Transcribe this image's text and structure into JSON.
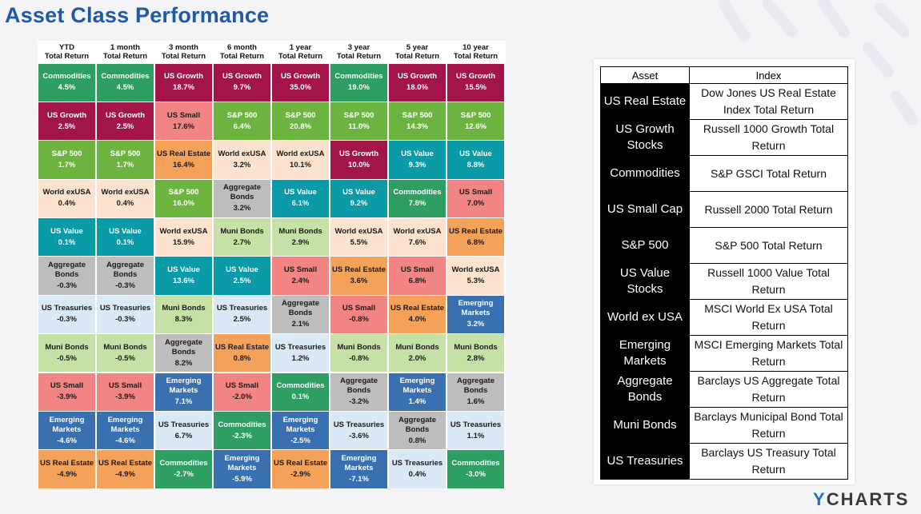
{
  "title": "Asset Class Performance",
  "brand": "YCHARTS",
  "colors": {
    "Commodities": {
      "bg": "#2e9e62",
      "fg": "#ffffff"
    },
    "US Growth": {
      "bg": "#a3154a",
      "fg": "#ffffff"
    },
    "S&P 500": {
      "bg": "#6cb33f",
      "fg": "#ffffff"
    },
    "World exUSA": {
      "bg": "#fde2d0",
      "fg": "#1a1a1a"
    },
    "US Value": {
      "bg": "#0a9aa8",
      "fg": "#ffffff"
    },
    "Aggregate Bonds": {
      "bg": "#bdbdbd",
      "fg": "#1a1a1a"
    },
    "US Treasuries": {
      "bg": "#dbe8f5",
      "fg": "#1a1a1a"
    },
    "Muni Bonds": {
      "bg": "#c6e1a6",
      "fg": "#1a1a1a"
    },
    "US Small": {
      "bg": "#f28583",
      "fg": "#1a1a1a"
    },
    "Emerging Markets": {
      "bg": "#3a6fb0",
      "fg": "#ffffff"
    },
    "US Real Estate": {
      "bg": "#f4a259",
      "fg": "#1a1a1a"
    }
  },
  "chart_data": {
    "type": "table",
    "title": "Asset Class Performance",
    "columns": [
      [
        "YTD",
        "Total Return"
      ],
      [
        "1 month",
        "Total Return"
      ],
      [
        "3 month",
        "Total Return"
      ],
      [
        "6 month",
        "Total Return"
      ],
      [
        "1 year",
        "Total Return"
      ],
      [
        "3 year",
        "Total Return"
      ],
      [
        "5 year",
        "Total Return"
      ],
      [
        "10 year",
        "Total Return"
      ]
    ],
    "rows": [
      [
        [
          "Commodities",
          "4.5%"
        ],
        [
          "Commodities",
          "4.5%"
        ],
        [
          "US Growth",
          "18.7%"
        ],
        [
          "US Growth",
          "9.7%"
        ],
        [
          "US Growth",
          "35.0%"
        ],
        [
          "Commodities",
          "19.0%"
        ],
        [
          "US Growth",
          "18.0%"
        ],
        [
          "US Growth",
          "15.5%"
        ]
      ],
      [
        [
          "US Growth",
          "2.5%"
        ],
        [
          "US Growth",
          "2.5%"
        ],
        [
          "US Small",
          "17.6%"
        ],
        [
          "S&P 500",
          "6.4%"
        ],
        [
          "S&P 500",
          "20.8%"
        ],
        [
          "S&P 500",
          "11.0%"
        ],
        [
          "S&P 500",
          "14.3%"
        ],
        [
          "S&P 500",
          "12.6%"
        ]
      ],
      [
        [
          "S&P 500",
          "1.7%"
        ],
        [
          "S&P 500",
          "1.7%"
        ],
        [
          "US Real Estate",
          "16.4%"
        ],
        [
          "World exUSA",
          "3.2%"
        ],
        [
          "World exUSA",
          "10.1%"
        ],
        [
          "US Growth",
          "10.0%"
        ],
        [
          "US Value",
          "9.3%"
        ],
        [
          "US Value",
          "8.8%"
        ]
      ],
      [
        [
          "World exUSA",
          "0.4%"
        ],
        [
          "World exUSA",
          "0.4%"
        ],
        [
          "S&P 500",
          "16.0%"
        ],
        [
          "Aggregate Bonds",
          "3.2%"
        ],
        [
          "US Value",
          "6.1%"
        ],
        [
          "US Value",
          "9.2%"
        ],
        [
          "Commodities",
          "7.8%"
        ],
        [
          "US Small",
          "7.0%"
        ]
      ],
      [
        [
          "US Value",
          "0.1%"
        ],
        [
          "US Value",
          "0.1%"
        ],
        [
          "World exUSA",
          "15.9%"
        ],
        [
          "Muni Bonds",
          "2.7%"
        ],
        [
          "Muni Bonds",
          "2.9%"
        ],
        [
          "World exUSA",
          "5.5%"
        ],
        [
          "World exUSA",
          "7.6%"
        ],
        [
          "US Real Estate",
          "6.8%"
        ]
      ],
      [
        [
          "Aggregate Bonds",
          "-0.3%"
        ],
        [
          "Aggregate Bonds",
          "-0.3%"
        ],
        [
          "US Value",
          "13.6%"
        ],
        [
          "US Value",
          "2.5%"
        ],
        [
          "US Small",
          "2.4%"
        ],
        [
          "US Real Estate",
          "3.6%"
        ],
        [
          "US Small",
          "6.8%"
        ],
        [
          "World exUSA",
          "5.3%"
        ]
      ],
      [
        [
          "US Treasuries",
          "-0.3%"
        ],
        [
          "US Treasuries",
          "-0.3%"
        ],
        [
          "Muni Bonds",
          "8.3%"
        ],
        [
          "US Treasuries",
          "2.5%"
        ],
        [
          "Aggregate Bonds",
          "2.1%"
        ],
        [
          "US Small",
          "-0.8%"
        ],
        [
          "US Real Estate",
          "4.0%"
        ],
        [
          "Emerging Markets",
          "3.2%"
        ]
      ],
      [
        [
          "Muni Bonds",
          "-0.5%"
        ],
        [
          "Muni Bonds",
          "-0.5%"
        ],
        [
          "Aggregate Bonds",
          "8.2%"
        ],
        [
          "US Real Estate",
          "0.8%"
        ],
        [
          "US Treasuries",
          "1.2%"
        ],
        [
          "Muni Bonds",
          "-0.8%"
        ],
        [
          "Muni Bonds",
          "2.0%"
        ],
        [
          "Muni Bonds",
          "2.8%"
        ]
      ],
      [
        [
          "US Small",
          "-3.9%"
        ],
        [
          "US Small",
          "-3.9%"
        ],
        [
          "Emerging Markets",
          "7.1%"
        ],
        [
          "US Small",
          "-2.0%"
        ],
        [
          "Commodities",
          "0.1%"
        ],
        [
          "Aggregate Bonds",
          "-3.2%"
        ],
        [
          "Emerging Markets",
          "1.4%"
        ],
        [
          "Aggregate Bonds",
          "1.6%"
        ]
      ],
      [
        [
          "Emerging Markets",
          "-4.6%"
        ],
        [
          "Emerging Markets",
          "-4.6%"
        ],
        [
          "US Treasuries",
          "6.7%"
        ],
        [
          "Commodities",
          "-2.3%"
        ],
        [
          "Emerging Markets",
          "-2.5%"
        ],
        [
          "US Treasuries",
          "-3.6%"
        ],
        [
          "Aggregate Bonds",
          "0.8%"
        ],
        [
          "US Treasuries",
          "1.1%"
        ]
      ],
      [
        [
          "US Real Estate",
          "-4.9%"
        ],
        [
          "US Real Estate",
          "-4.9%"
        ],
        [
          "Commodities",
          "-2.7%"
        ],
        [
          "Emerging Markets",
          "-5.9%"
        ],
        [
          "US Real Estate",
          "-2.9%"
        ],
        [
          "Emerging Markets",
          "-7.1%"
        ],
        [
          "US Treasuries",
          "0.4%"
        ],
        [
          "Commodities",
          "-3.0%"
        ]
      ]
    ]
  },
  "legend": {
    "headers": [
      "Asset",
      "Index"
    ],
    "rows": [
      {
        "asset": "US Real Estate",
        "index": "Dow Jones US Real Estate Index Total Return"
      },
      {
        "asset": "US Growth Stocks",
        "index": "Russell 1000 Growth Total Return"
      },
      {
        "asset": "Commodities",
        "index": "S&P GSCI Total Return"
      },
      {
        "asset": "US Small Cap",
        "index": "Russell 2000 Total Return"
      },
      {
        "asset": "S&P 500",
        "index": "S&P 500 Total Return"
      },
      {
        "asset": "US Value Stocks",
        "index": "Russell 1000 Value Total Return"
      },
      {
        "asset": "World ex USA",
        "index": "MSCI World Ex USA Total Return"
      },
      {
        "asset": "Emerging Markets",
        "index": "MSCI Emerging Markets Total Return"
      },
      {
        "asset": "Aggregate Bonds",
        "index": "Barclays US Aggregate Total Return"
      },
      {
        "asset": "Muni Bonds",
        "index": "Barclays Municipal Bond Total Return"
      },
      {
        "asset": "US Treasuries",
        "index": "Barclays US Treasury Total Return"
      }
    ]
  }
}
